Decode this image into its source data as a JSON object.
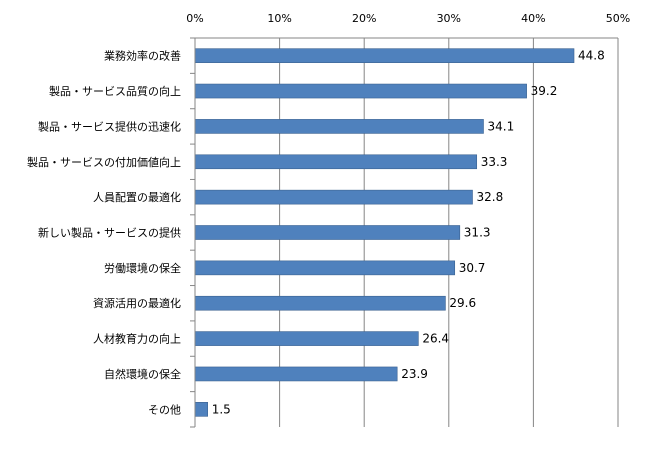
{
  "chart_data": {
    "type": "bar",
    "orientation": "horizontal",
    "title": "",
    "xlabel": "",
    "ylabel": "",
    "x_axis_position": "top",
    "xlim": [
      0,
      50
    ],
    "x_ticks": [
      "0%",
      "10%",
      "20%",
      "30%",
      "40%",
      "50%"
    ],
    "grid": true,
    "legend": "none",
    "categories": [
      "業務効率の改善",
      "製品・サービス品質の向上",
      "製品・サービス提供の迅速化",
      "製品・サービスの付加価値向上",
      "人員配置の最適化",
      "新しい製品・サービスの提供",
      "労働環境の保全",
      "資源活用の最適化",
      "人材教育力の向上",
      "自然環境の保全",
      "その他"
    ],
    "values": [
      44.8,
      39.2,
      34.1,
      33.3,
      32.8,
      31.3,
      30.7,
      29.6,
      26.4,
      23.9,
      1.5
    ],
    "data_labels": [
      "44.8",
      "39.2",
      "34.1",
      "33.3",
      "32.8",
      "31.3",
      "30.7",
      "29.6",
      "26.4",
      "23.9",
      "1.5"
    ],
    "colors": {
      "bar": "#4f81bd",
      "bar_edge": "#3a6190",
      "grid": "#868686",
      "axis": "#868686"
    }
  }
}
